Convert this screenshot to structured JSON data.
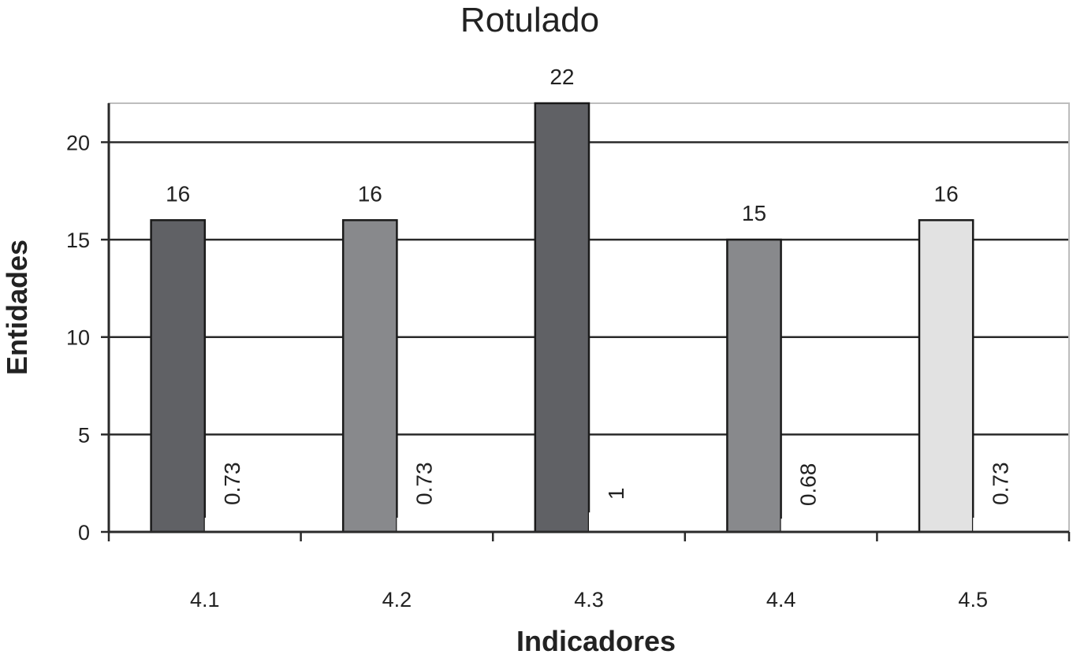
{
  "chart_data": {
    "type": "bar",
    "title": "Rotulado",
    "xlabel": "Indicadores",
    "ylabel": "Entidades",
    "categories": [
      "4.1",
      "4.2",
      "4.3",
      "4.4",
      "4.5"
    ],
    "series": [
      {
        "values": [
          16,
          16,
          22,
          15,
          16
        ],
        "colors": [
          "#606165",
          "#88898c",
          "#606165",
          "#88898c",
          "#e2e2e2"
        ]
      },
      {
        "values": [
          0.73,
          0.73,
          1,
          0.68,
          0.73
        ],
        "value_labels": [
          "0.73",
          "0.73",
          "1",
          "0.68",
          "0.73"
        ]
      }
    ],
    "ylim": [
      0,
      22
    ],
    "yticks": [
      0,
      5,
      10,
      15,
      20
    ],
    "grid": true,
    "legend": "none"
  }
}
